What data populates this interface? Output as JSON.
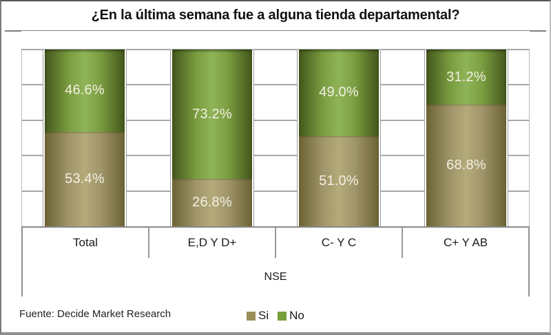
{
  "chart_data": {
    "type": "bar",
    "variant": "stacked-cylinder-100pct",
    "title": "¿En la última semana fue a alguna tienda departamental?",
    "categories": [
      "Total",
      "E,D Y D+",
      "C- Y C",
      "C+ Y AB"
    ],
    "series": [
      {
        "name": "Si",
        "values": [
          53.4,
          26.8,
          51.0,
          68.8
        ],
        "labels": [
          "53.4%",
          "26.8%",
          "51.0%",
          "68.8%"
        ],
        "colors": {
          "dark": "#6b6234",
          "main": "#a0956a",
          "light": "#b5aa79"
        }
      },
      {
        "name": "No",
        "values": [
          46.6,
          73.2,
          49.0,
          31.2
        ],
        "labels": [
          "46.6%",
          "73.2%",
          "49.0%",
          "31.2%"
        ],
        "colors": {
          "dark": "#42561b",
          "main": "#7a9d40",
          "light": "#8fb458"
        }
      }
    ],
    "stack_order_top_to_bottom": [
      "No",
      "Si"
    ],
    "xlabel": "NSE",
    "ylim": [
      0,
      100
    ],
    "gridline_interval_pct": 20,
    "gridline_color": "#a8a8a8",
    "value_label_color": "#f2f0e3",
    "legend_position": "bottom-center",
    "legend": [
      {
        "label": "Si",
        "swatch_color": "#9a8f58"
      },
      {
        "label": "No",
        "swatch_color": "#789e3b"
      }
    ]
  },
  "footer": {
    "source": "Fuente: Decide Market Research"
  }
}
